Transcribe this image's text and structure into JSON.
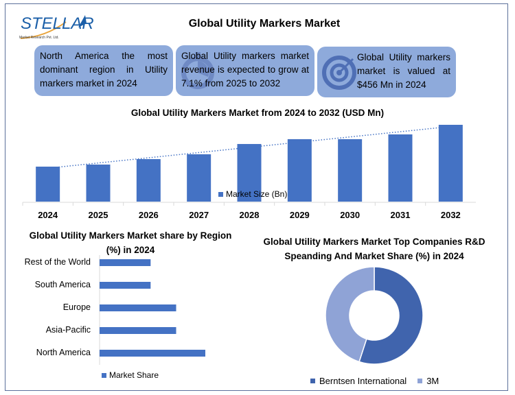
{
  "header": {
    "logo_text": "STELLAR",
    "logo_subtext": "Market Research Pvt. Ltd.",
    "title": "Global Utility Markers Market"
  },
  "info_boxes": [
    {
      "text": "North America the most dominant region in Utility markers market in 2024",
      "icon": "none"
    },
    {
      "text": "Global Utility markers market revenue is expected to grow at 7.1% from 2025 to 2032",
      "icon": "stopwatch-icon"
    },
    {
      "text": "Global Utility markers market is valued at $456 Mn in 2024",
      "icon": "target-icon"
    }
  ],
  "colors": {
    "bar": "#4472c4",
    "box": "#8eaadb",
    "donut_dark": "#4064ad",
    "donut_light": "#8fa3d6",
    "frame": "#5b6f9a"
  },
  "chart_data": [
    {
      "type": "bar",
      "title": "Global Utility Markers Market from 2024 to 2032 (USD Mn)",
      "categories": [
        "2024",
        "2025",
        "2026",
        "2027",
        "2028",
        "2029",
        "2030",
        "2031",
        "2032"
      ],
      "series": [
        {
          "name": "Market Size (Bn)",
          "values": [
            456,
            483,
            554,
            617,
            751,
            814,
            814,
            876,
            1001
          ]
        }
      ],
      "trendline": "linear-dotted",
      "ylim": [
        0,
        1050
      ],
      "grid": false,
      "legend": "inside-bottom-center"
    },
    {
      "type": "bar",
      "orientation": "horizontal",
      "title": "Global Utility Markers Market share by Region (%) in 2024",
      "categories": [
        "Rest of the World",
        "South America",
        "Europe",
        "Asia-Pacific",
        "North America"
      ],
      "series": [
        {
          "name": "Market Share",
          "values": [
            14,
            14,
            21,
            21,
            29
          ]
        }
      ],
      "xlim": [
        0,
        35
      ],
      "grid": false,
      "legend": "bottom"
    },
    {
      "type": "pie",
      "donut": true,
      "title": "Global Utility Markers Market  Top Companies R&D Speanding And Market Share (%)  in 2024",
      "labels": [
        "Berntsen International",
        "3M"
      ],
      "values": [
        55,
        45
      ],
      "legend": "bottom"
    }
  ]
}
